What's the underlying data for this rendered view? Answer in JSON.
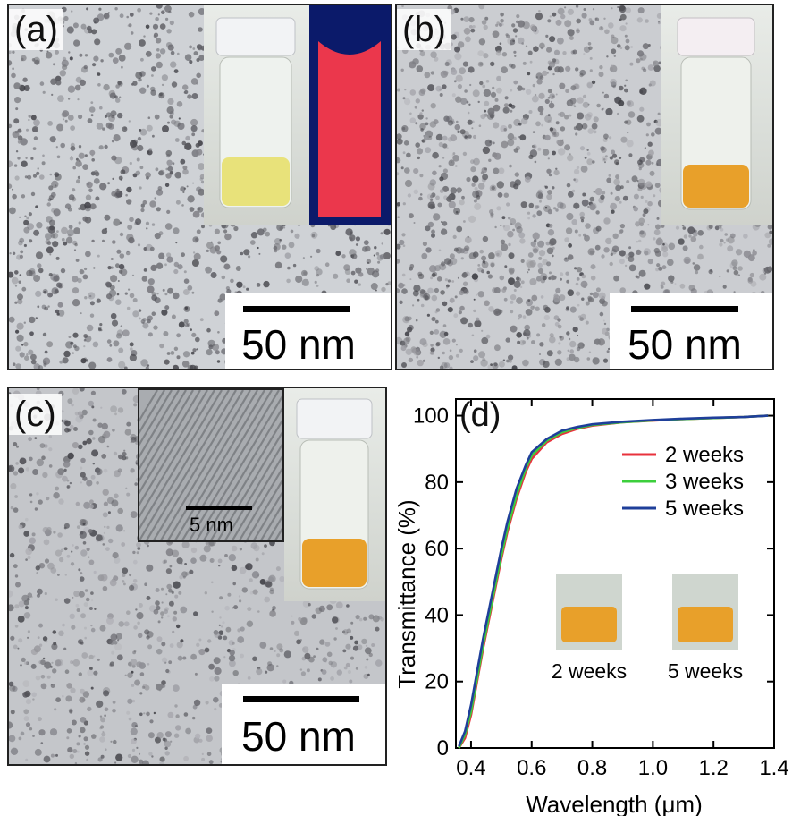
{
  "panels": {
    "a": {
      "label": "(a)",
      "scale": "50 nm"
    },
    "b": {
      "label": "(b)",
      "scale": "50 nm"
    },
    "c": {
      "label": "(c)",
      "scale": "50 nm",
      "hr_scale": "5 nm"
    },
    "d": {
      "label": "(d)"
    }
  },
  "photo_labels": [
    "2 weeks",
    "5 weeks"
  ],
  "colors": {
    "red": "#e8323c",
    "green": "#3ccf3c",
    "blue": "#1f3f9a",
    "uv_glow": "#ff3a4a",
    "liquid_pale": "#e8e27a",
    "liquid_orange": "#e8a02a"
  },
  "chart_data": {
    "type": "line",
    "xlabel": "Wavelength (μm)",
    "ylabel": "Transmittance (%)",
    "xlim": [
      0.35,
      1.4
    ],
    "ylim": [
      0,
      105
    ],
    "xticks": [
      "0.4",
      "0.6",
      "0.8",
      "1.0",
      "1.2",
      "1.4"
    ],
    "yticks": [
      "0",
      "20",
      "40",
      "60",
      "80",
      "100"
    ],
    "legend_position": "top-right",
    "series": [
      {
        "name": "2 weeks",
        "color": "#e8323c",
        "x": [
          0.36,
          0.38,
          0.4,
          0.42,
          0.44,
          0.46,
          0.48,
          0.5,
          0.52,
          0.55,
          0.58,
          0.6,
          0.65,
          0.7,
          0.75,
          0.8,
          0.9,
          1.0,
          1.1,
          1.2,
          1.3,
          1.38
        ],
        "y": [
          0,
          3,
          10,
          20,
          30,
          39,
          48,
          57,
          65,
          75,
          83,
          87,
          92,
          94.5,
          96,
          97,
          98,
          98.5,
          99,
          99.3,
          99.6,
          100
        ]
      },
      {
        "name": "3 weeks",
        "color": "#3ccf3c",
        "x": [
          0.36,
          0.38,
          0.4,
          0.42,
          0.44,
          0.46,
          0.48,
          0.5,
          0.52,
          0.55,
          0.58,
          0.6,
          0.65,
          0.7,
          0.75,
          0.8,
          0.9,
          1.0,
          1.1,
          1.2,
          1.3,
          1.38
        ],
        "y": [
          0,
          4,
          11,
          21,
          31,
          40,
          49,
          58,
          66,
          76,
          84,
          88,
          92.5,
          95,
          96.3,
          97.2,
          98,
          98.6,
          99,
          99.3,
          99.6,
          100
        ]
      },
      {
        "name": "5 weeks",
        "color": "#1f3f9a",
        "x": [
          0.36,
          0.38,
          0.4,
          0.42,
          0.44,
          0.46,
          0.48,
          0.5,
          0.52,
          0.55,
          0.58,
          0.6,
          0.65,
          0.7,
          0.75,
          0.8,
          0.9,
          1.0,
          1.1,
          1.2,
          1.3,
          1.38
        ],
        "y": [
          0.5,
          5,
          13,
          23,
          33,
          42,
          51,
          60,
          68,
          78,
          85,
          89,
          93,
          95.5,
          96.6,
          97.4,
          98.2,
          98.7,
          99.1,
          99.4,
          99.6,
          100
        ]
      }
    ]
  }
}
